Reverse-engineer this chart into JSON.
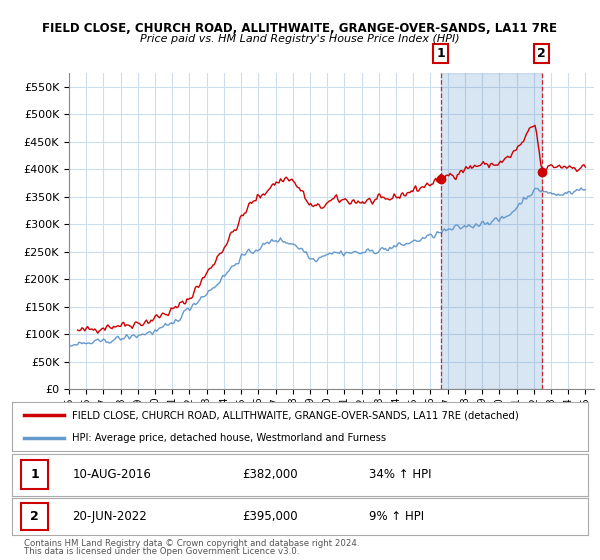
{
  "title": "FIELD CLOSE, CHURCH ROAD, ALLITHWAITE, GRANGE-OVER-SANDS, LA11 7RE",
  "subtitle": "Price paid vs. HM Land Registry's House Price Index (HPI)",
  "red_color": "#cc0000",
  "blue_color": "#6699cc",
  "shade_color": "#ddeeff",
  "background_color": "#ffffff",
  "grid_color": "#ccddee",
  "ylim": [
    0,
    575000
  ],
  "xlim_start": 1995.0,
  "xlim_end": 2025.5,
  "yticks": [
    0,
    50000,
    100000,
    150000,
    200000,
    250000,
    300000,
    350000,
    400000,
    450000,
    500000,
    550000
  ],
  "ytick_labels": [
    "£0",
    "£50K",
    "£100K",
    "£150K",
    "£200K",
    "£250K",
    "£300K",
    "£350K",
    "£400K",
    "£450K",
    "£500K",
    "£550K"
  ],
  "sale1_x": 2016.609,
  "sale1_y": 382000,
  "sale2_x": 2022.466,
  "sale2_y": 395000,
  "legend_label_red": "FIELD CLOSE, CHURCH ROAD, ALLITHWAITE, GRANGE-OVER-SANDS, LA11 7RE (detached)",
  "legend_label_blue": "HPI: Average price, detached house, Westmorland and Furness",
  "table_row1": [
    "1",
    "10-AUG-2016",
    "£382,000",
    "34% ↑ HPI"
  ],
  "table_row2": [
    "2",
    "20-JUN-2022",
    "£395,000",
    "9% ↑ HPI"
  ],
  "footer1": "Contains HM Land Registry data © Crown copyright and database right 2024.",
  "footer2": "This data is licensed under the Open Government Licence v3.0."
}
